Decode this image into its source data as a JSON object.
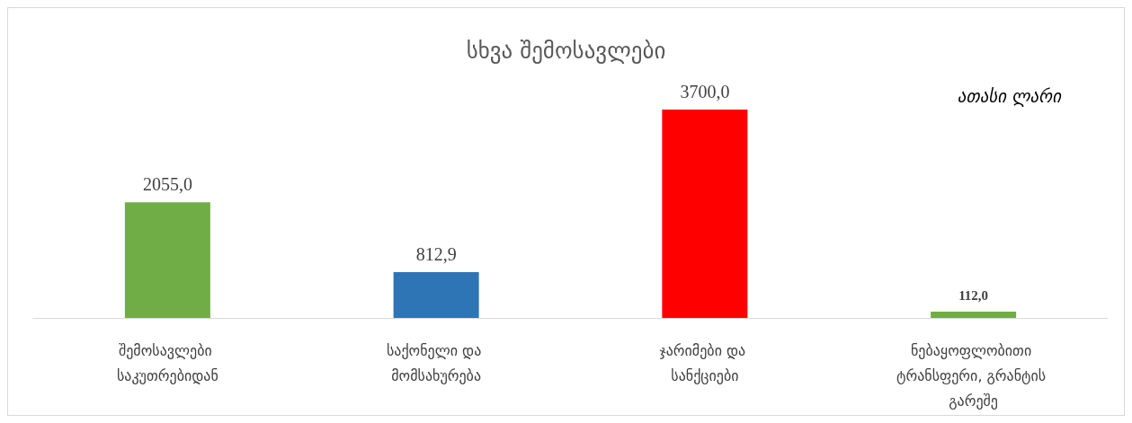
{
  "chart_data": {
    "type": "bar",
    "title": "სხვა შემოსავლები",
    "annotations": [
      "ათასი ლარი"
    ],
    "categories": [
      "შემოსავლები საკუთრებიდან",
      "საქონელი და მომსახურება",
      "ჯარიმები და სანქციები",
      "ნებაყოფლობითი ტრანსფერი, გრანტის გარეშე"
    ],
    "values": [
      2055.0,
      812.9,
      3700.0,
      112.0
    ],
    "value_labels": [
      "2055,0",
      "812,9",
      "3700,0",
      "112,0"
    ],
    "colors": [
      "#70ad47",
      "#2e75b6",
      "#ff0000",
      "#70ad47"
    ]
  }
}
